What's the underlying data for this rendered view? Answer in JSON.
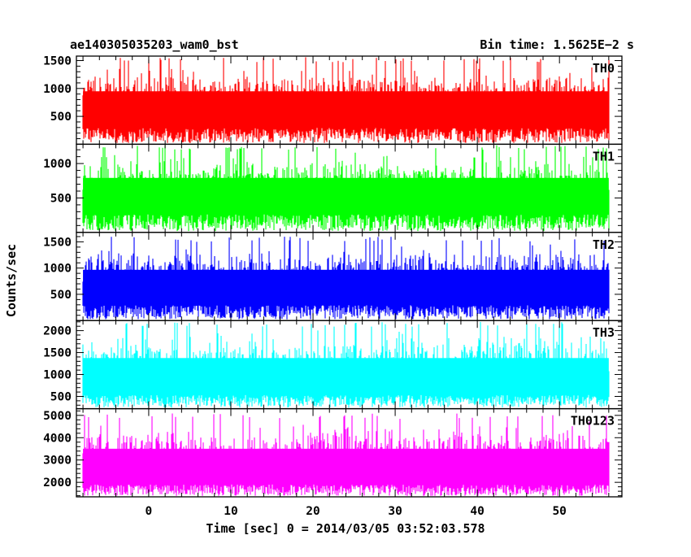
{
  "chart_data": {
    "type": "line",
    "title_left": "ae140305035203_wam0_bst",
    "title_right": "Bin time: 1.5625E−2 s",
    "xlabel": "Time [sec] 0 = 2014/03/05 03:52:03.578",
    "ylabel": "Counts/sec",
    "xlim": [
      -8.8,
      57.6
    ],
    "data_range": [
      -8.0,
      56.0
    ],
    "x_ticks": [
      0,
      10,
      20,
      30,
      40,
      50
    ],
    "x_tick_labels": [
      "0",
      "10",
      "20",
      "30",
      "40",
      "50"
    ],
    "grid": false,
    "legend": "none",
    "panels": [
      {
        "name": "TH0",
        "color": "#ff0000",
        "ylim": [
          0,
          1580
        ],
        "y_ticks": [
          500,
          1000,
          1500
        ],
        "y_tick_labels": [
          "500",
          "1000",
          "1500"
        ],
        "baseline": 450,
        "peak": 1560,
        "seed": 11
      },
      {
        "name": "TH1",
        "color": "#00ff00",
        "ylim": [
          0,
          1280
        ],
        "y_ticks": [
          500,
          1000
        ],
        "y_tick_labels": [
          "500",
          "1000"
        ],
        "baseline": 400,
        "peak": 1270,
        "seed": 23
      },
      {
        "name": "TH2",
        "color": "#0000ff",
        "ylim": [
          0,
          1680
        ],
        "y_ticks": [
          500,
          1000,
          1500
        ],
        "y_tick_labels": [
          "500",
          "1000",
          "1500"
        ],
        "baseline": 450,
        "peak": 1600,
        "seed": 37
      },
      {
        "name": "TH3",
        "color": "#00ffff",
        "ylim": [
          220,
          2230
        ],
        "y_ticks": [
          500,
          1000,
          1500,
          2000
        ],
        "y_tick_labels": [
          "500",
          "1000",
          "1500",
          "2000"
        ],
        "baseline": 700,
        "peak": 2200,
        "seed": 53
      },
      {
        "name": "TH0123",
        "color": "#ff00ff",
        "ylim": [
          1350,
          5300
        ],
        "y_ticks": [
          2000,
          3000,
          4000,
          5000
        ],
        "y_tick_labels": [
          "2000",
          "3000",
          "4000",
          "5000"
        ],
        "baseline": 2200,
        "peak": 5100,
        "seed": 71
      }
    ]
  }
}
